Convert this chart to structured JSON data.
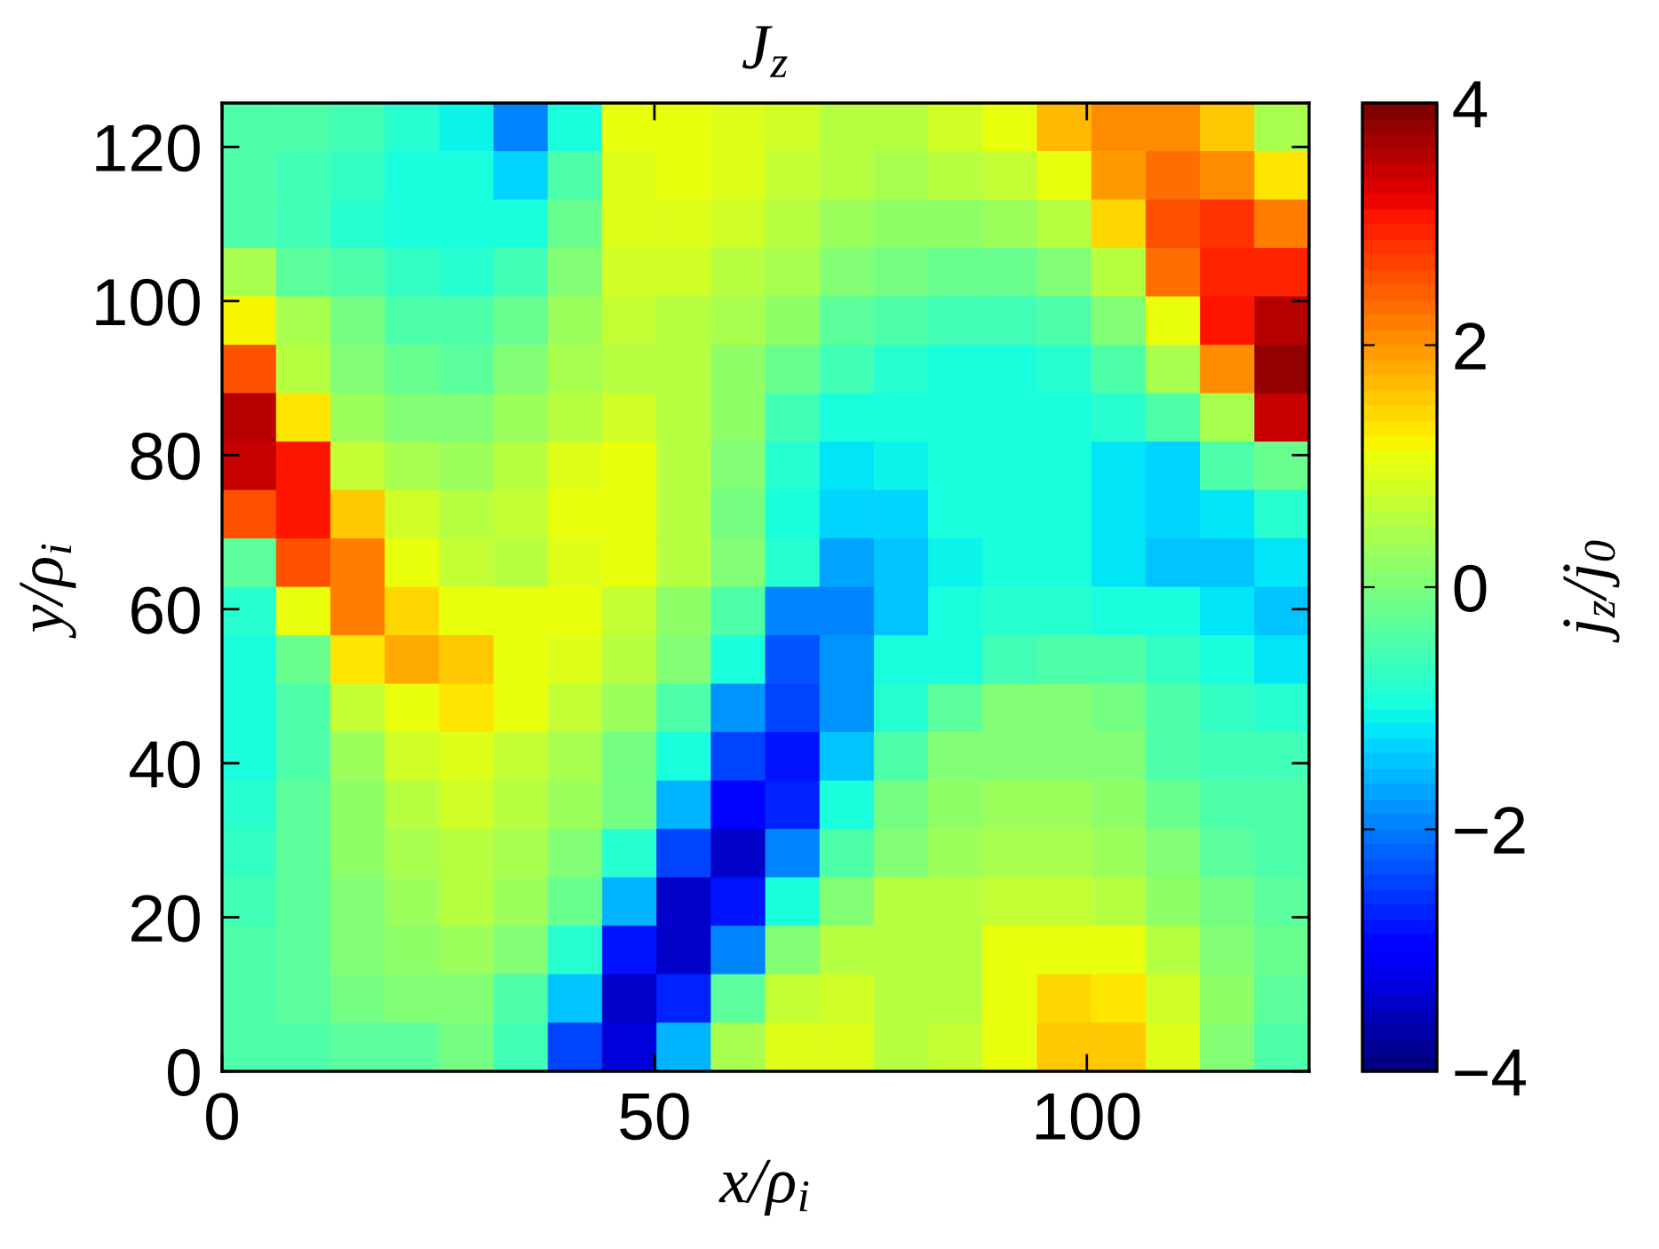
{
  "chart_data": {
    "type": "heatmap",
    "title": "J$_{z}$",
    "xlabel": "x/ρ$_{i}$",
    "ylabel": "y/ρ$_{i}$",
    "clabel": "j$_{z}$/j$_{0}$",
    "xlim": [
      0,
      125.7
    ],
    "ylim": [
      0,
      125.7
    ],
    "xticks": [
      0,
      50,
      100
    ],
    "yticks": [
      0,
      20,
      40,
      60,
      80,
      100,
      120
    ],
    "clim": [
      -4,
      4
    ],
    "cticks": [
      {
        "value": -4,
        "label": "−4"
      },
      {
        "value": -2,
        "label": "−2"
      },
      0,
      2,
      4
    ],
    "cells": [
      [
        -0.5,
        -0.5,
        -0.6,
        -0.8,
        -1.1,
        -2.0,
        -1.0,
        1.0,
        1.0,
        0.9,
        0.8,
        0.6,
        0.6,
        0.8,
        1.1,
        1.7,
        2.0,
        2.1,
        1.5,
        0.4
      ],
      [
        -0.5,
        -0.6,
        -0.7,
        -0.9,
        -1.0,
        -1.3,
        -0.4,
        0.9,
        1.0,
        0.9,
        0.7,
        0.5,
        0.4,
        0.5,
        0.7,
        1.0,
        1.9,
        2.3,
        2.0,
        1.3
      ],
      [
        -0.4,
        -0.6,
        -0.8,
        -0.9,
        -1.0,
        -1.0,
        -0.2,
        0.9,
        0.9,
        0.8,
        0.6,
        0.3,
        0.2,
        0.2,
        0.3,
        0.6,
        1.4,
        2.5,
        2.8,
        2.2
      ],
      [
        0.4,
        -0.3,
        -0.5,
        -0.7,
        -0.8,
        -0.6,
        0.0,
        0.8,
        0.8,
        0.5,
        0.4,
        0.1,
        -0.1,
        -0.2,
        -0.2,
        0.1,
        0.6,
        2.3,
        2.9,
        2.9
      ],
      [
        1.2,
        0.4,
        -0.1,
        -0.4,
        -0.5,
        -0.2,
        0.3,
        0.7,
        0.6,
        0.4,
        0.2,
        -0.3,
        -0.5,
        -0.6,
        -0.6,
        -0.4,
        0.1,
        1.0,
        3.0,
        3.5
      ],
      [
        2.6,
        0.5,
        0.0,
        -0.2,
        -0.3,
        0.0,
        0.4,
        0.6,
        0.5,
        0.2,
        -0.2,
        -0.6,
        -0.8,
        -0.9,
        -0.9,
        -0.8,
        -0.4,
        0.4,
        2.0,
        3.8
      ],
      [
        3.6,
        1.3,
        0.3,
        0.1,
        0.0,
        0.3,
        0.6,
        0.8,
        0.5,
        0.2,
        -0.6,
        -1.0,
        -1.0,
        -1.0,
        -1.0,
        -1.0,
        -0.8,
        -0.5,
        0.4,
        3.4
      ],
      [
        3.4,
        3.0,
        0.7,
        0.4,
        0.3,
        0.5,
        0.9,
        1.0,
        0.6,
        0.0,
        -0.8,
        -1.2,
        -1.1,
        -1.0,
        -1.0,
        -1.0,
        -1.2,
        -1.3,
        -0.5,
        -0.2
      ],
      [
        2.6,
        3.0,
        1.6,
        0.8,
        0.6,
        0.7,
        1.0,
        1.0,
        0.5,
        -0.1,
        -1.0,
        -1.3,
        -1.3,
        -1.0,
        -1.0,
        -1.0,
        -1.2,
        -1.3,
        -1.2,
        -0.8
      ],
      [
        -0.3,
        2.5,
        2.2,
        1.0,
        0.7,
        0.6,
        0.9,
        1.0,
        0.5,
        0.0,
        -0.8,
        -1.7,
        -1.5,
        -1.1,
        -1.0,
        -1.0,
        -1.2,
        -1.4,
        -1.4,
        -1.2
      ],
      [
        -0.8,
        1.0,
        2.2,
        1.4,
        1.0,
        1.0,
        1.0,
        0.7,
        0.2,
        -0.5,
        -2.0,
        -1.9,
        -1.4,
        -1.0,
        -0.8,
        -0.8,
        -0.9,
        -1.0,
        -1.2,
        -1.4
      ],
      [
        -0.9,
        -0.2,
        1.3,
        1.8,
        1.5,
        1.0,
        0.9,
        0.6,
        0.1,
        -1.0,
        -2.3,
        -1.8,
        -1.0,
        -1.0,
        -0.6,
        -0.4,
        -0.4,
        -0.7,
        -0.9,
        -1.2
      ],
      [
        -1.0,
        -0.4,
        0.7,
        1.1,
        1.3,
        1.0,
        0.7,
        0.3,
        -0.5,
        -1.8,
        -2.4,
        -1.8,
        -0.8,
        -0.3,
        0.0,
        0.0,
        -0.1,
        -0.5,
        -0.7,
        -0.8
      ],
      [
        -0.9,
        -0.4,
        0.3,
        0.8,
        0.9,
        0.7,
        0.4,
        -0.1,
        -1.0,
        -2.4,
        -2.8,
        -1.5,
        -0.4,
        0.0,
        0.1,
        0.1,
        0.0,
        -0.4,
        -0.6,
        -0.6
      ],
      [
        -0.8,
        -0.3,
        0.2,
        0.5,
        0.8,
        0.6,
        0.3,
        -0.1,
        -1.6,
        -3.0,
        -2.7,
        -1.0,
        -0.1,
        0.2,
        0.3,
        0.3,
        0.2,
        -0.2,
        -0.4,
        -0.5
      ],
      [
        -0.7,
        -0.3,
        0.2,
        0.4,
        0.6,
        0.4,
        0.1,
        -0.8,
        -2.5,
        -3.4,
        -2.0,
        -0.4,
        0.1,
        0.3,
        0.4,
        0.4,
        0.3,
        0.0,
        -0.3,
        -0.4
      ],
      [
        -0.6,
        -0.3,
        0.1,
        0.3,
        0.5,
        0.3,
        -0.2,
        -1.6,
        -3.5,
        -2.8,
        -1.0,
        0.1,
        0.5,
        0.5,
        0.7,
        0.7,
        0.5,
        0.2,
        -0.1,
        -0.3
      ],
      [
        -0.5,
        -0.3,
        0.0,
        0.2,
        0.3,
        0.0,
        -0.8,
        -2.8,
        -3.5,
        -2.0,
        0.0,
        0.5,
        0.6,
        0.6,
        1.0,
        1.1,
        1.0,
        0.6,
        0.1,
        -0.2
      ],
      [
        -0.5,
        -0.3,
        -0.1,
        0.0,
        0.0,
        -0.4,
        -1.5,
        -3.5,
        -2.7,
        -0.3,
        0.7,
        0.8,
        0.5,
        0.6,
        1.1,
        1.4,
        1.3,
        0.8,
        0.2,
        -0.3
      ],
      [
        -0.5,
        -0.4,
        -0.3,
        -0.3,
        -0.1,
        -0.6,
        -2.4,
        -3.3,
        -1.6,
        0.4,
        0.9,
        0.9,
        0.6,
        0.7,
        1.1,
        1.6,
        1.5,
        0.9,
        0.1,
        -0.4
      ]
    ]
  }
}
